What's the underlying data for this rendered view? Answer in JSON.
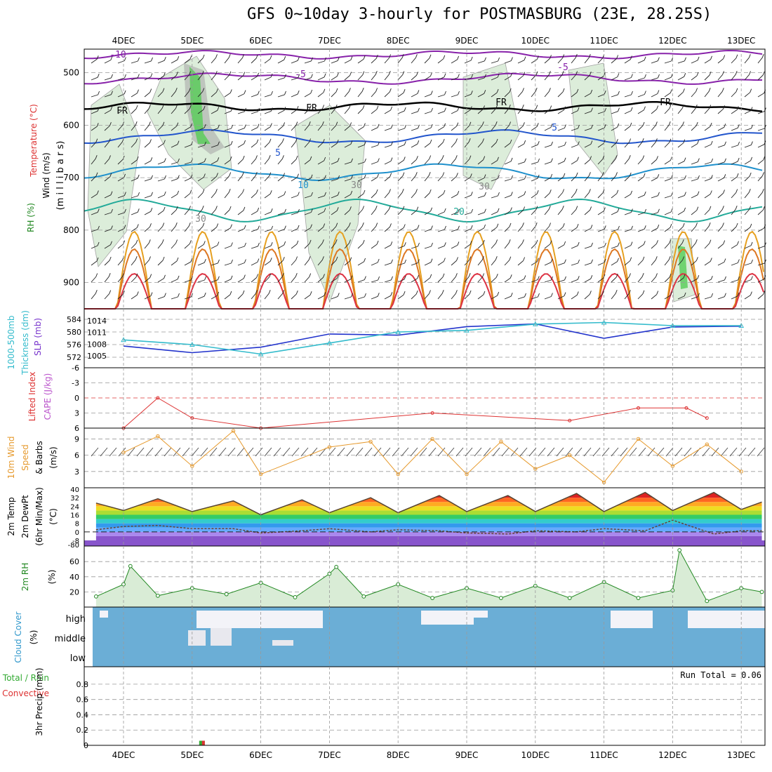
{
  "title": "GFS 0~10day 3-hourly for POSTMASBURG (23E, 28.25S)",
  "dates": [
    "4DEC",
    "5DEC",
    "6DEC",
    "7DEC",
    "8DEC",
    "9DEC",
    "10DEC",
    "11DEC",
    "12DEC",
    "13DEC"
  ],
  "colors": {
    "grid": "#999999",
    "rh_green": "#3cb44b",
    "rh_light": "#d9ecd6",
    "slp_blue": "#2233cc",
    "thickness_cyan": "#33bbcc",
    "li_red": "#dd3333",
    "wind_orange": "#e69a2e",
    "cloud_blue": "#6baed6",
    "cloud_white": "#f3f3f8"
  },
  "panels": {
    "upper_air": {
      "ylabels": [
        "Wind (m/s)",
        "Temperature (°C)",
        "(m i l l i b a r s)",
        "RH (%)"
      ],
      "levels": [
        "500",
        "600",
        "700",
        "800",
        "900"
      ],
      "contour_labels": [
        "-10",
        "-5",
        "-5",
        "FR",
        "FR",
        "FR",
        "FR",
        "5",
        "5",
        "10",
        "20",
        "30",
        "30",
        "30"
      ]
    },
    "slp_thickness": {
      "ylabels": [
        "1000-500mb",
        "Thickness (dm)",
        "SLP (mb)"
      ],
      "left_ticks": [
        "584",
        "580",
        "576",
        "572"
      ],
      "right_ticks": [
        "1014",
        "1011",
        "1008",
        "1005"
      ]
    },
    "li_cape": {
      "ylabels": [
        "Lifted Index",
        "CAPE (J/kg)"
      ],
      "ticks": [
        "-6",
        "-3",
        "0",
        "3",
        "6"
      ]
    },
    "wind10m": {
      "ylabels": [
        "10m Wind",
        "Speed",
        "& Barbs",
        "(m/s)"
      ],
      "ticks": [
        "9",
        "6",
        "3"
      ]
    },
    "temp2m": {
      "ylabels": [
        "2m Temp",
        "2m DewPt",
        "(6hr Min/Max)",
        "(°C)"
      ],
      "ticks": [
        "40",
        "32",
        "24",
        "16",
        "8",
        "0",
        "-8",
        "-80"
      ]
    },
    "rh2m": {
      "ylabels": [
        "2m RH",
        "(%)"
      ],
      "ticks": [
        "60",
        "40",
        "20"
      ]
    },
    "cloud": {
      "ylabels": [
        "Cloud Cover",
        "(%)"
      ],
      "layers": [
        "high",
        "middle",
        "low"
      ]
    },
    "precip": {
      "ylabels": [
        "Total / Rain",
        "Convective",
        "3hr Precip (mm)"
      ],
      "ticks": [
        "0.8",
        "0.6",
        "0.4",
        "0.2",
        "0"
      ],
      "run_total": "Run Total = 0.06"
    }
  },
  "chart_data": [
    {
      "type": "line",
      "title": "1000-500mb Thickness (dm)",
      "x": [
        "4DEC",
        "5DEC",
        "6DEC",
        "7DEC",
        "8DEC",
        "9DEC",
        "10DEC",
        "11DEC",
        "12DEC",
        "13DEC"
      ],
      "series": [
        {
          "name": "SLP (mb)",
          "values": [
            1007.5,
            1005.8,
            1007.2,
            1010.6,
            1010.3,
            1012.5,
            1013.2,
            1009.5,
            1012.4,
            1012.6
          ]
        },
        {
          "name": "1000-500mb Thickness (dm)",
          "values": [
            577.5,
            576,
            573,
            576.5,
            580,
            580.5,
            582.5,
            583,
            582,
            582
          ]
        }
      ]
    },
    {
      "type": "line",
      "title": "Lifted Index",
      "x": [
        "4DEC",
        "4.5DEC",
        "5DEC",
        "6DEC",
        "8.5DEC",
        "10.5DEC",
        "11.5DEC",
        "12.2DEC",
        "12.5DEC"
      ],
      "values": [
        6,
        0,
        4,
        6,
        3,
        4.5,
        2,
        2,
        4
      ],
      "ylim": [
        6,
        -6
      ]
    },
    {
      "type": "line",
      "title": "10m Wind Speed",
      "x": [
        "4DEC",
        "4.5DEC",
        "5DEC",
        "5.6DEC",
        "6DEC",
        "7DEC",
        "7.6DEC",
        "8DEC",
        "8.5DEC",
        "9DEC",
        "9.5DEC",
        "10DEC",
        "10.5DEC",
        "11DEC",
        "11.5DEC",
        "12DEC",
        "12.5DEC",
        "13DEC"
      ],
      "values": [
        6.5,
        9.5,
        4,
        10.5,
        2.5,
        7.5,
        8.5,
        2.5,
        9,
        2.5,
        8.5,
        3.5,
        6,
        1,
        9,
        4,
        8,
        3
      ],
      "ylim": [
        0,
        11
      ]
    },
    {
      "type": "area",
      "title": "2m Temp",
      "x": [
        "3.6DEC",
        "4DEC",
        "4.5DEC",
        "5DEC",
        "5.6DEC",
        "6DEC",
        "6.6DEC",
        "7DEC",
        "7.6DEC",
        "8DEC",
        "8.6DEC",
        "9DEC",
        "9.6DEC",
        "10DEC",
        "10.6DEC",
        "11DEC",
        "11.6DEC",
        "12DEC",
        "12.6DEC",
        "13DEC",
        "13.3DEC"
      ],
      "series": [
        {
          "name": "2m Temp",
          "values": [
            27,
            20,
            31,
            19,
            29,
            16,
            30,
            18,
            32,
            18,
            34,
            19,
            34,
            19,
            36,
            19,
            37,
            20,
            37,
            21,
            28
          ]
        },
        {
          "name": "2m DewPt",
          "values": [
            2,
            5,
            6,
            3,
            3,
            -1,
            1,
            3,
            0,
            2,
            1,
            -1,
            -2,
            1,
            0,
            3,
            1,
            11,
            -2,
            1,
            1
          ]
        }
      ],
      "ylim": [
        -8,
        40
      ]
    },
    {
      "type": "area",
      "title": "2m RH",
      "x": [
        "3.6DEC",
        "4DEC",
        "4.1DEC",
        "4.5DEC",
        "5DEC",
        "5.5DEC",
        "6DEC",
        "6.5DEC",
        "7DEC",
        "7.1DEC",
        "7.5DEC",
        "8DEC",
        "8.5DEC",
        "9DEC",
        "9.5DEC",
        "10DEC",
        "10.5DEC",
        "11DEC",
        "11.5DEC",
        "12DEC",
        "12.1DEC",
        "12.5DEC",
        "13DEC",
        "13.3DEC"
      ],
      "values": [
        14,
        30,
        54,
        15,
        25,
        17,
        32,
        13,
        44,
        53,
        14,
        30,
        12,
        25,
        12,
        28,
        12,
        33,
        12,
        22,
        75,
        8,
        25,
        20
      ],
      "ylim": [
        0,
        75
      ]
    },
    {
      "type": "bar",
      "title": "3hr Precip (mm)",
      "categories": [
        "5DEC"
      ],
      "values": [
        0.06
      ],
      "ylim": [
        0,
        0.9
      ]
    }
  ]
}
